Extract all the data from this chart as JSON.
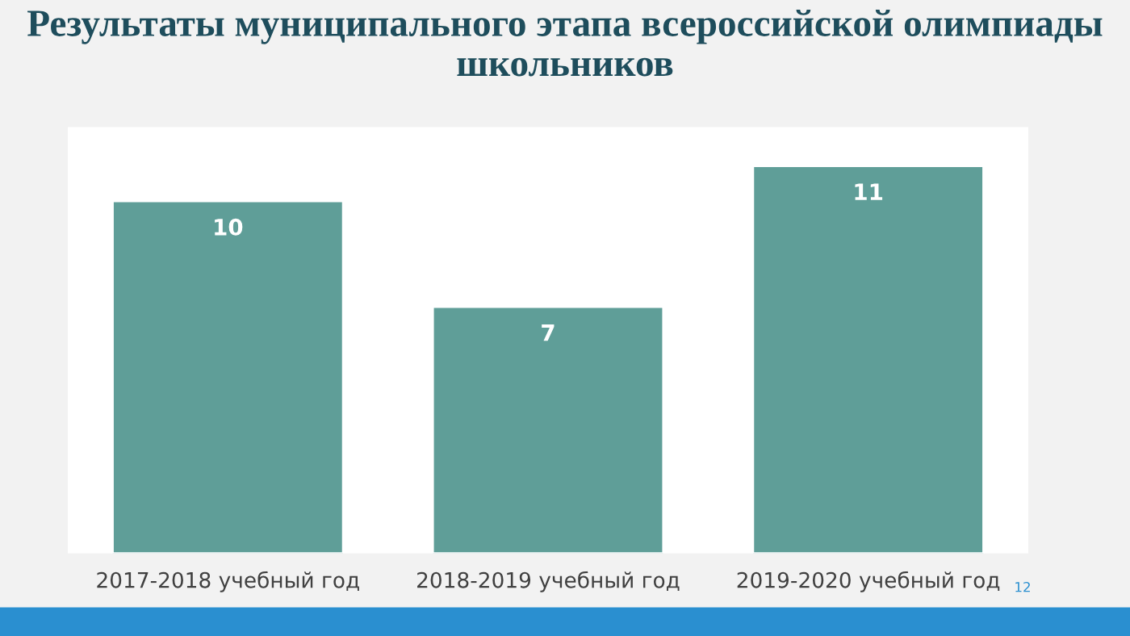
{
  "chart_data": {
    "type": "bar",
    "title": "Результаты муниципального этапа всероссийской олимпиады школьников",
    "categories": [
      "2017-2018 учебный год",
      "2018-2019 учебный год",
      "2019-2020 учебный год"
    ],
    "values": [
      10,
      7,
      11
    ],
    "color": "#5f9e98",
    "data_labels": true,
    "grid": false,
    "annotations": [
      "12"
    ]
  }
}
